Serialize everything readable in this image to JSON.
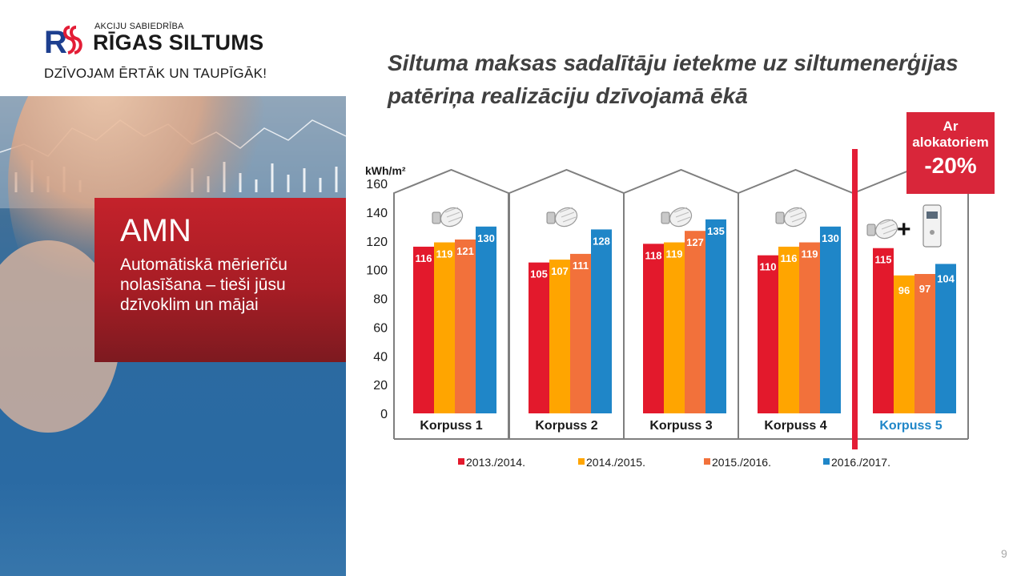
{
  "logo": {
    "monogram": "RS",
    "company_small": "AKCIJU SABIEDRĪBA",
    "company_name": "RĪGAS SILTUMS",
    "tagline": "DZĪVOJAM ĒRTĀK UN TAUPĪGĀK!"
  },
  "promo": {
    "title": "AMN",
    "subtitle": "Automātiskā mērierīču nolasīšana – tieši jūsu dzīvoklim un mājai"
  },
  "page_title": "Siltuma maksas sadalītāju ietekme uz siltumenerģijas patēriņa realizāciju dzīvojamā ēkā",
  "callout": {
    "line1": "Ar",
    "line2": "alokatoriem",
    "line3": "-20%"
  },
  "page_number": "9",
  "colors": {
    "s2013": "#e3192c",
    "s2014": "#ffa500",
    "s2015": "#f2713b",
    "s2016": "#1f86c8",
    "divider": "#e31d36",
    "house": "#7f7f7f"
  },
  "icons": [
    "thermostat-icon",
    "plus-icon",
    "heat-meter-icon"
  ],
  "chart_data": {
    "type": "bar",
    "ylabel": "kWh/m²",
    "ylim": [
      0,
      160
    ],
    "yticks": [
      "0",
      "20",
      "40",
      "60",
      "80",
      "100",
      "120",
      "140",
      "160"
    ],
    "categories": [
      "Korpuss 1",
      "Korpuss 2",
      "Korpuss 3",
      "Korpuss 4",
      "Korpuss 5"
    ],
    "highlight_category": "Korpuss 5",
    "series": [
      {
        "name": "2013./2014.",
        "values": [
          116,
          105,
          118,
          110,
          115
        ]
      },
      {
        "name": "2014./2015.",
        "values": [
          119,
          107,
          119,
          116,
          96
        ]
      },
      {
        "name": "2015./2016.",
        "values": [
          121,
          111,
          127,
          119,
          97
        ]
      },
      {
        "name": "2016./2017.",
        "values": [
          130,
          128,
          135,
          130,
          104
        ]
      }
    ],
    "data_labels": [
      [
        "116",
        "119",
        "121",
        "130"
      ],
      [
        "105",
        "107",
        "111",
        "128"
      ],
      [
        "118",
        "119",
        "127",
        "135"
      ],
      [
        "110",
        "116",
        "119",
        "130"
      ],
      [
        "115",
        "96",
        "97",
        "104"
      ]
    ],
    "legend_position": "bottom",
    "grid": false
  }
}
